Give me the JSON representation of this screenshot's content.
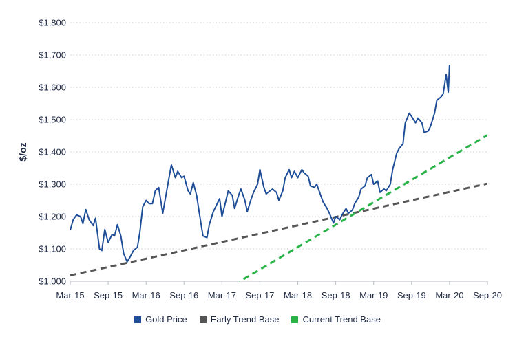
{
  "chart_data": {
    "type": "line",
    "ylabel": "$/oz",
    "ylim": [
      1000,
      1800
    ],
    "yticks": [
      1000,
      1100,
      1200,
      1300,
      1400,
      1500,
      1600,
      1700,
      1800
    ],
    "ytick_labels": [
      "$1,000",
      "$1,100",
      "$1,200",
      "$1,300",
      "$1,400",
      "$1,500",
      "$1,600",
      "$1,700",
      "$1,800"
    ],
    "xlim": [
      "2015-03",
      "2020-09"
    ],
    "xticks": [
      "2015-03",
      "2015-09",
      "2016-03",
      "2016-09",
      "2017-03",
      "2017-09",
      "2018-03",
      "2018-09",
      "2019-03",
      "2019-09",
      "2020-03",
      "2020-09"
    ],
    "xtick_labels": [
      "Mar-15",
      "Sep-15",
      "Mar-16",
      "Sep-16",
      "Mar-17",
      "Sep-17",
      "Mar-18",
      "Sep-18",
      "Mar-19",
      "Sep-19",
      "Mar-20",
      "Sep-20"
    ],
    "grid": "horizontal dotted",
    "legend_position": "bottom",
    "series": [
      {
        "name": "Gold Price",
        "color": "#1f4e99",
        "style": "solid",
        "points": [
          [
            "2015-03",
            1158
          ],
          [
            "2015-03-15",
            1190
          ],
          [
            "2015-04",
            1205
          ],
          [
            "2015-04-20",
            1200
          ],
          [
            "2015-05",
            1178
          ],
          [
            "2015-05-15",
            1222
          ],
          [
            "2015-06",
            1190
          ],
          [
            "2015-06-20",
            1172
          ],
          [
            "2015-07",
            1195
          ],
          [
            "2015-07-20",
            1100
          ],
          [
            "2015-08",
            1095
          ],
          [
            "2015-08-15",
            1160
          ],
          [
            "2015-09",
            1120
          ],
          [
            "2015-09-20",
            1145
          ],
          [
            "2015-10",
            1140
          ],
          [
            "2015-10-15",
            1175
          ],
          [
            "2015-11",
            1140
          ],
          [
            "2015-11-15",
            1085
          ],
          [
            "2015-12",
            1060
          ],
          [
            "2015-12-15",
            1075
          ],
          [
            "2016-01",
            1095
          ],
          [
            "2016-01-20",
            1105
          ],
          [
            "2016-02",
            1150
          ],
          [
            "2016-02-15",
            1230
          ],
          [
            "2016-03",
            1250
          ],
          [
            "2016-03-15",
            1240
          ],
          [
            "2016-04",
            1240
          ],
          [
            "2016-04-15",
            1280
          ],
          [
            "2016-05",
            1290
          ],
          [
            "2016-05-20",
            1210
          ],
          [
            "2016-06",
            1250
          ],
          [
            "2016-06-20",
            1320
          ],
          [
            "2016-07",
            1360
          ],
          [
            "2016-07-20",
            1320
          ],
          [
            "2016-08",
            1340
          ],
          [
            "2016-08-20",
            1320
          ],
          [
            "2016-09",
            1325
          ],
          [
            "2016-09-20",
            1280
          ],
          [
            "2016-10",
            1270
          ],
          [
            "2016-10-15",
            1305
          ],
          [
            "2016-11",
            1265
          ],
          [
            "2016-11-15",
            1205
          ],
          [
            "2016-12",
            1140
          ],
          [
            "2016-12-20",
            1135
          ],
          [
            "2017-01",
            1175
          ],
          [
            "2017-01-20",
            1215
          ],
          [
            "2017-02",
            1230
          ],
          [
            "2017-02-20",
            1255
          ],
          [
            "2017-03",
            1200
          ],
          [
            "2017-03-20",
            1250
          ],
          [
            "2017-04",
            1280
          ],
          [
            "2017-04-20",
            1265
          ],
          [
            "2017-05",
            1225
          ],
          [
            "2017-05-20",
            1265
          ],
          [
            "2017-06",
            1285
          ],
          [
            "2017-06-20",
            1250
          ],
          [
            "2017-07",
            1215
          ],
          [
            "2017-07-20",
            1255
          ],
          [
            "2017-08",
            1275
          ],
          [
            "2017-08-20",
            1300
          ],
          [
            "2017-09",
            1345
          ],
          [
            "2017-09-20",
            1290
          ],
          [
            "2017-10",
            1270
          ],
          [
            "2017-10-20",
            1280
          ],
          [
            "2017-11",
            1285
          ],
          [
            "2017-11-20",
            1275
          ],
          [
            "2017-12",
            1250
          ],
          [
            "2017-12-20",
            1280
          ],
          [
            "2018-01",
            1320
          ],
          [
            "2018-01-20",
            1345
          ],
          [
            "2018-02",
            1320
          ],
          [
            "2018-02-15",
            1340
          ],
          [
            "2018-03",
            1320
          ],
          [
            "2018-03-20",
            1345
          ],
          [
            "2018-04",
            1335
          ],
          [
            "2018-04-20",
            1325
          ],
          [
            "2018-05",
            1295
          ],
          [
            "2018-05-20",
            1290
          ],
          [
            "2018-06",
            1300
          ],
          [
            "2018-06-20",
            1265
          ],
          [
            "2018-07",
            1245
          ],
          [
            "2018-07-20",
            1225
          ],
          [
            "2018-08",
            1210
          ],
          [
            "2018-08-20",
            1180
          ],
          [
            "2018-09",
            1200
          ],
          [
            "2018-09-20",
            1190
          ],
          [
            "2018-10",
            1205
          ],
          [
            "2018-10-20",
            1225
          ],
          [
            "2018-11",
            1210
          ],
          [
            "2018-11-20",
            1220
          ],
          [
            "2018-12",
            1240
          ],
          [
            "2018-12-20",
            1260
          ],
          [
            "2019-01",
            1285
          ],
          [
            "2019-01-20",
            1295
          ],
          [
            "2019-02",
            1320
          ],
          [
            "2019-02-20",
            1330
          ],
          [
            "2019-03",
            1300
          ],
          [
            "2019-03-20",
            1310
          ],
          [
            "2019-04",
            1275
          ],
          [
            "2019-04-20",
            1285
          ],
          [
            "2019-05",
            1280
          ],
          [
            "2019-05-20",
            1300
          ],
          [
            "2019-06",
            1345
          ],
          [
            "2019-06-20",
            1395
          ],
          [
            "2019-07",
            1410
          ],
          [
            "2019-07-20",
            1425
          ],
          [
            "2019-08",
            1490
          ],
          [
            "2019-08-20",
            1520
          ],
          [
            "2019-09",
            1510
          ],
          [
            "2019-09-20",
            1490
          ],
          [
            "2019-10",
            1505
          ],
          [
            "2019-10-20",
            1490
          ],
          [
            "2019-11",
            1460
          ],
          [
            "2019-11-20",
            1465
          ],
          [
            "2019-12",
            1480
          ],
          [
            "2019-12-20",
            1520
          ],
          [
            "2020-01",
            1560
          ],
          [
            "2020-01-20",
            1570
          ],
          [
            "2020-02",
            1580
          ],
          [
            "2020-02-15",
            1640
          ],
          [
            "2020-02-25",
            1585
          ],
          [
            "2020-03",
            1670
          ]
        ]
      },
      {
        "name": "Early Trend Base",
        "color": "#555555",
        "style": "dashed",
        "points": [
          [
            "2015-03",
            1018
          ],
          [
            "2020-09",
            1302
          ]
        ]
      },
      {
        "name": "Current Trend Base",
        "color": "#2bb34a",
        "style": "dashed",
        "points": [
          [
            "2017-05",
            990
          ],
          [
            "2020-09",
            1452
          ]
        ]
      }
    ]
  }
}
